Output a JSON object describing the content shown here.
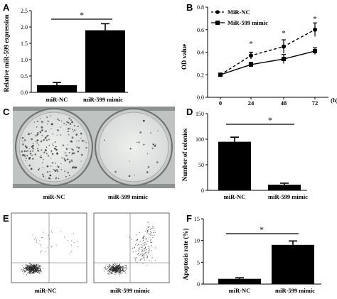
{
  "panels": {
    "A": {
      "letter": "A",
      "ylabel": "Relative miR-599 expression",
      "categories": [
        "miR-NC",
        "miR-599 mimic"
      ],
      "sig": "*"
    },
    "B": {
      "letter": "B",
      "ylabel": "OD value",
      "xunit": "(h)",
      "legend": [
        "MiR-NC",
        "MiR-599 mimic"
      ],
      "sig": [
        "*",
        "*",
        "*"
      ]
    },
    "C": {
      "letter": "C",
      "labels": [
        "miR-NC",
        "miR-599 mimic"
      ]
    },
    "D": {
      "letter": "D",
      "ylabel": "Number of colonies",
      "categories": [
        "miR-NC",
        "miR-599 mimic"
      ],
      "sig": "*"
    },
    "E": {
      "letter": "E",
      "labels": [
        "miR-NC",
        "miR-599 mimic"
      ]
    },
    "F": {
      "letter": "F",
      "ylabel": "Apoptosis rate (%)",
      "categories": [
        "miR-NC",
        "miR-599 mimic"
      ],
      "sig": "*"
    }
  },
  "chart_data": [
    {
      "panel": "A",
      "type": "bar",
      "categories": [
        "miR-NC",
        "miR-599 mimic"
      ],
      "values": [
        0.22,
        1.9
      ],
      "errors": [
        0.08,
        0.2
      ],
      "ylabel": "Relative miR-599 expression",
      "ylim": [
        0,
        2.5
      ],
      "yticks": [
        0.0,
        0.5,
        1.0,
        1.5,
        2.0,
        2.5
      ],
      "annotations": [
        "*"
      ]
    },
    {
      "panel": "B",
      "type": "line",
      "x": [
        0,
        24,
        48,
        72
      ],
      "xlabel": "(h)",
      "ylabel": "OD value",
      "ylim": [
        0,
        0.8
      ],
      "yticks": [
        0.0,
        0.2,
        0.4,
        0.6,
        0.8
      ],
      "series": [
        {
          "name": "MiR-NC",
          "values": [
            0.2,
            0.37,
            0.45,
            0.6
          ],
          "errors": [
            0.01,
            0.03,
            0.06,
            0.06
          ],
          "style": "dashed",
          "marker": "circle"
        },
        {
          "name": "MiR-599 mimic",
          "values": [
            0.2,
            0.29,
            0.34,
            0.41
          ],
          "errors": [
            0.01,
            0.02,
            0.04,
            0.03
          ],
          "style": "solid",
          "marker": "square"
        }
      ],
      "annotations": [
        "*",
        "*",
        "*"
      ],
      "legend": "top-left"
    },
    {
      "panel": "D",
      "type": "bar",
      "categories": [
        "miR-NC",
        "miR-599 mimic"
      ],
      "values": [
        95,
        11
      ],
      "errors": [
        9,
        3
      ],
      "ylabel": "Number of colonies",
      "ylim": [
        0,
        150
      ],
      "yticks": [
        0,
        50,
        100,
        150
      ],
      "annotations": [
        "*"
      ]
    },
    {
      "panel": "F",
      "type": "bar",
      "categories": [
        "miR-NC",
        "miR-599 mimic"
      ],
      "values": [
        1.2,
        9.0
      ],
      "errors": [
        0.25,
        0.9
      ],
      "ylabel": "Apoptosis rate (%)",
      "ylim": [
        0,
        15
      ],
      "yticks": [
        0,
        5,
        10,
        15
      ],
      "annotations": [
        "*"
      ]
    }
  ]
}
